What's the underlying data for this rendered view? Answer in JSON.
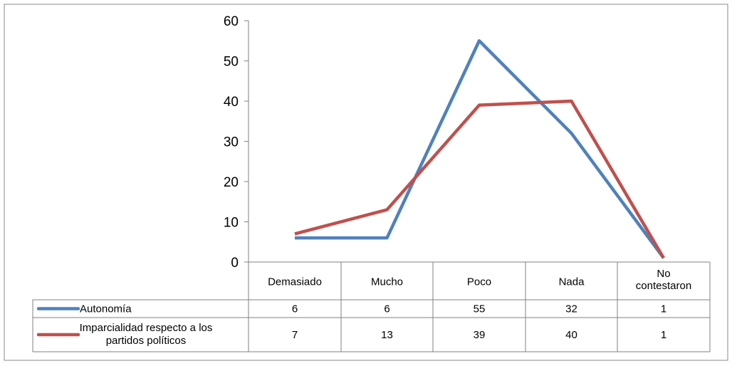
{
  "chart_data": {
    "type": "line",
    "title": "",
    "xlabel": "",
    "ylabel": "",
    "categories": [
      "Demasiado",
      "Mucho",
      "Poco",
      "Nada",
      "No contestaron"
    ],
    "ylim": [
      0,
      60
    ],
    "yticks": [
      0,
      10,
      20,
      30,
      40,
      50,
      60
    ],
    "grid": false,
    "legend": "data table below chart",
    "series": [
      {
        "name": "Autonomía",
        "color": "#4f81bd",
        "values": [
          6,
          6,
          55,
          32,
          1
        ]
      },
      {
        "name": "Imparcialidad respecto a los partidos políticos",
        "color": "#c0504d",
        "values": [
          7,
          13,
          39,
          40,
          1
        ]
      }
    ]
  }
}
